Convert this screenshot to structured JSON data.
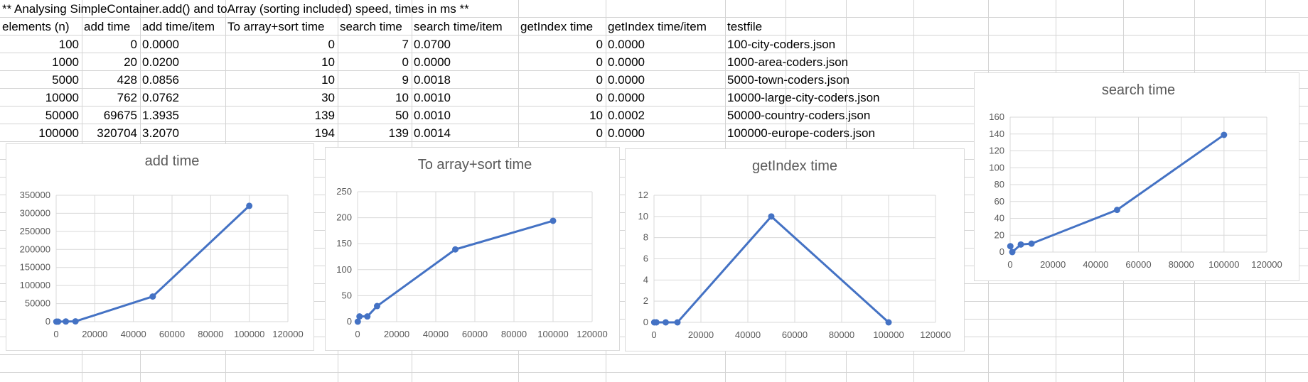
{
  "sheet": {
    "title": "** Analysing SimpleContainer.add() and toArray (sorting included) speed, times in ms **",
    "headers": [
      "elements (n)",
      "add time",
      "add time/item",
      "To array+sort time",
      "search time",
      "search time/item",
      "getIndex time",
      "getIndex time/item",
      "testfile"
    ],
    "rows": [
      [
        "100",
        "0",
        "0.0000",
        "0",
        "7",
        "0.0700",
        "0",
        "0.0000",
        "100-city-coders.json"
      ],
      [
        "1000",
        "20",
        "0.0200",
        "10",
        "0",
        "0.0000",
        "0",
        "0.0000",
        "1000-area-coders.json"
      ],
      [
        "5000",
        "428",
        "0.0856",
        "10",
        "9",
        "0.0018",
        "0",
        "0.0000",
        "5000-town-coders.json"
      ],
      [
        "10000",
        "762",
        "0.0762",
        "30",
        "10",
        "0.0010",
        "0",
        "0.0000",
        "10000-large-city-coders.json"
      ],
      [
        "50000",
        "69675",
        "1.3935",
        "139",
        "50",
        "0.0010",
        "10",
        "0.0002",
        "50000-country-coders.json"
      ],
      [
        "100000",
        "320704",
        "3.2070",
        "194",
        "139",
        "0.0014",
        "0",
        "0.0000",
        "100000-europe-coders.json"
      ]
    ]
  },
  "chart_data": [
    {
      "type": "line",
      "title": "add time",
      "x": [
        100,
        1000,
        5000,
        10000,
        50000,
        100000
      ],
      "y": [
        0,
        20,
        428,
        762,
        69675,
        320704
      ],
      "xlim": [
        0,
        120000
      ],
      "xticks": [
        0,
        20000,
        40000,
        60000,
        80000,
        100000,
        120000
      ],
      "ylim": [
        0,
        350000
      ],
      "yticks": [
        0,
        50000,
        100000,
        150000,
        200000,
        250000,
        300000,
        350000
      ],
      "color": "#4472c4",
      "grid": true
    },
    {
      "type": "line",
      "title": "To array+sort time",
      "x": [
        100,
        1000,
        5000,
        10000,
        50000,
        100000
      ],
      "y": [
        0,
        10,
        10,
        30,
        139,
        194
      ],
      "xlim": [
        0,
        120000
      ],
      "xticks": [
        0,
        20000,
        40000,
        60000,
        80000,
        100000,
        120000
      ],
      "ylim": [
        0,
        250
      ],
      "yticks": [
        0,
        50,
        100,
        150,
        200,
        250
      ],
      "color": "#4472c4",
      "grid": true
    },
    {
      "type": "line",
      "title": "getIndex time",
      "x": [
        100,
        1000,
        5000,
        10000,
        50000,
        100000
      ],
      "y": [
        0,
        0,
        0,
        0,
        10,
        0
      ],
      "xlim": [
        0,
        120000
      ],
      "xticks": [
        0,
        20000,
        40000,
        60000,
        80000,
        100000,
        120000
      ],
      "ylim": [
        0,
        12
      ],
      "yticks": [
        0,
        2,
        4,
        6,
        8,
        10,
        12
      ],
      "color": "#4472c4",
      "grid": true
    },
    {
      "type": "line",
      "title": "search time",
      "x": [
        100,
        1000,
        5000,
        10000,
        50000,
        100000
      ],
      "y": [
        7,
        0,
        9,
        10,
        50,
        139
      ],
      "xlim": [
        0,
        120000
      ],
      "xticks": [
        0,
        20000,
        40000,
        60000,
        80000,
        100000,
        120000
      ],
      "ylim": [
        0,
        160
      ],
      "yticks": [
        0,
        20,
        40,
        60,
        80,
        100,
        120,
        140,
        160
      ],
      "color": "#4472c4",
      "grid": true
    }
  ]
}
